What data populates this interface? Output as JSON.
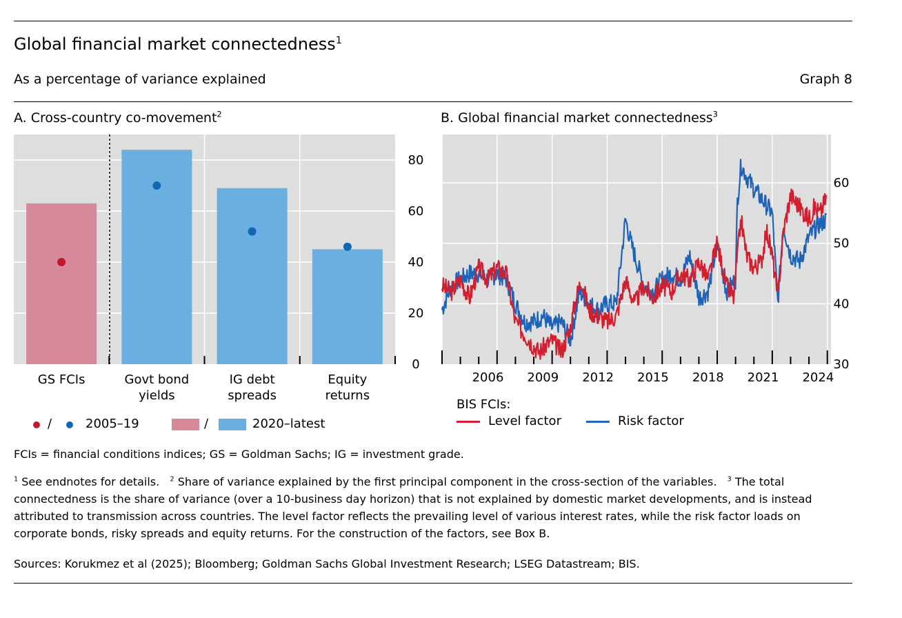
{
  "title": "Global financial market connectedness",
  "title_note": "1",
  "subtitle": "As a percentage of variance explained",
  "graph_label": "Graph 8",
  "colors": {
    "red_bar": "#d6899a",
    "blue_bar": "#6aafe0",
    "red_dot": "#c0182d",
    "blue_dot": "#1068b5",
    "level_line": "#d11f30",
    "risk_line": "#1e63b8",
    "panel_bg": "#dedede"
  },
  "panel_a": {
    "title": "A. Cross-country co-movement",
    "title_note": "2",
    "legend": {
      "dot_sep": "/",
      "dot_label": "2005–19",
      "bar_sep": "/",
      "bar_label": "2020–latest"
    }
  },
  "panel_b": {
    "title": "B. Global financial market connectedness",
    "title_note": "3",
    "legend": {
      "heading": "BIS FCIs:",
      "level_label": "Level factor",
      "risk_label": "Risk factor"
    }
  },
  "chart_data": [
    {
      "type": "bar",
      "title": "A. Cross-country co-movement",
      "categories": [
        [
          "GS FCIs"
        ],
        [
          "Govt bond",
          "yields"
        ],
        [
          "IG debt",
          "spreads"
        ],
        [
          "Equity",
          "returns"
        ]
      ],
      "series": [
        {
          "name": "2020–latest",
          "kind": "bar",
          "values": [
            63,
            84,
            69,
            45
          ]
        },
        {
          "name": "2005–19",
          "kind": "dot",
          "values": [
            40,
            70,
            52,
            46
          ]
        }
      ],
      "ylim": [
        0,
        90
      ],
      "yticks": [
        0,
        20,
        40,
        60,
        80
      ],
      "yaxis_side": "right"
    },
    {
      "type": "line",
      "title": "B. Global financial market connectedness",
      "x_ticks": [
        "2006",
        "2009",
        "2012",
        "2015",
        "2018",
        "2021",
        "2024"
      ],
      "x_tick_years": [
        2006,
        2009,
        2012,
        2015,
        2018,
        2021,
        2024
      ],
      "xlim": [
        2004.0,
        2025.2
      ],
      "ylim": [
        30,
        68
      ],
      "yticks": [
        30,
        40,
        50,
        60
      ],
      "yaxis_side": "right",
      "series": [
        {
          "name": "Level factor",
          "x": [
            2004.0,
            2004.5,
            2005.0,
            2005.5,
            2006.0,
            2006.5,
            2007.0,
            2007.5,
            2008.0,
            2008.5,
            2009.0,
            2009.3,
            2009.6,
            2010.0,
            2010.5,
            2011.0,
            2011.3,
            2011.6,
            2012.0,
            2012.5,
            2013.0,
            2013.5,
            2014.0,
            2014.5,
            2015.0,
            2015.5,
            2016.0,
            2016.5,
            2017.0,
            2017.5,
            2018.0,
            2018.5,
            2019.0,
            2019.5,
            2019.9,
            2020.1,
            2020.3,
            2020.6,
            2021.0,
            2021.4,
            2021.7,
            2022.0,
            2022.3,
            2022.6,
            2023.0,
            2023.5,
            2024.0,
            2024.3,
            2024.6,
            2025.0
          ],
          "y": [
            43,
            42,
            44,
            41,
            46,
            44,
            46,
            45,
            37,
            35,
            33,
            32,
            33,
            34,
            32,
            36,
            41,
            44,
            39,
            38,
            37,
            38,
            44,
            40,
            43,
            41,
            43,
            42,
            45,
            44,
            47,
            44,
            50,
            43,
            41,
            48,
            54,
            48,
            46,
            47,
            52,
            48,
            41,
            52,
            58,
            56,
            54,
            56,
            55,
            58
          ]
        },
        {
          "name": "Risk factor",
          "x": [
            2004.0,
            2004.5,
            2005.0,
            2005.5,
            2006.0,
            2006.5,
            2007.0,
            2007.5,
            2008.0,
            2008.5,
            2009.0,
            2009.5,
            2010.0,
            2010.5,
            2011.0,
            2011.5,
            2012.0,
            2012.5,
            2013.0,
            2013.5,
            2014.0,
            2014.3,
            2014.6,
            2015.0,
            2015.5,
            2016.0,
            2016.5,
            2017.0,
            2017.5,
            2018.0,
            2018.5,
            2019.0,
            2019.5,
            2020.0,
            2020.1,
            2020.3,
            2020.6,
            2021.0,
            2021.5,
            2022.0,
            2022.3,
            2022.6,
            2023.0,
            2023.5,
            2024.0,
            2024.5,
            2025.0
          ],
          "y": [
            39,
            43,
            44,
            45,
            45,
            44,
            45,
            44,
            40,
            37,
            37,
            38,
            36,
            37,
            34,
            42,
            40,
            39,
            40,
            40,
            54,
            50,
            47,
            43,
            42,
            44,
            45,
            44,
            48,
            41,
            42,
            50,
            42,
            44,
            57,
            63,
            61,
            59,
            57,
            55,
            40,
            53,
            48,
            47,
            51,
            53,
            54
          ]
        }
      ]
    }
  ],
  "footnotes": {
    "abbreviations": "FCIs = financial conditions indices; GS = Goldman Sachs; IG = investment grade.",
    "n1_num": "1",
    "n1": "See endnotes for details.",
    "n2_num": "2",
    "n2": "Share of variance explained by the first principal component in the cross-section of the variables.",
    "n3_num": "3",
    "n3": "The total connectedness is the share of variance (over a 10-business day horizon) that is not explained by domestic market developments, and is instead attributed to transmission across countries. The level factor reflects the prevailing level of various interest rates, while the risk factor loads on corporate bonds, risky spreads and equity returns. For the construction of the factors, see Box B.",
    "sources": "Sources: Korukmez et al (2025); Bloomberg; Goldman Sachs Global Investment Research; LSEG Datastream; BIS."
  }
}
